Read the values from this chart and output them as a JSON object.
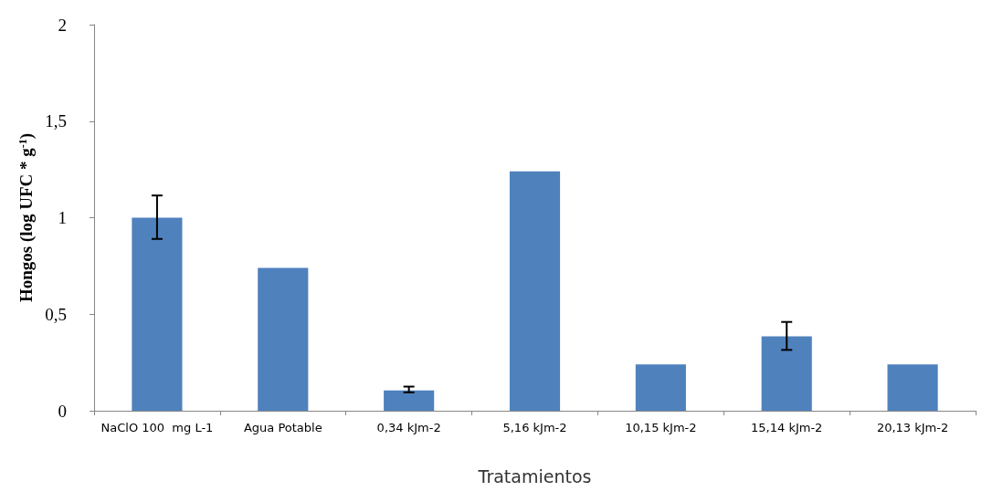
{
  "chart_data": {
    "type": "bar",
    "xlabel": "Tratamientos",
    "ylabel": "Hongos (log UFC * g$^{-1}$)",
    "categories": [
      "NaClO 100  mg L-1",
      "Agua Potable",
      "0,34 kJm-2",
      "5,16 kJm-2",
      "10,15 kJm-2",
      "15,14 kJm-2",
      "20,13 kJm-2"
    ],
    "values": [
      1.0,
      0.74,
      0.105,
      1.24,
      0.24,
      0.385,
      0.24
    ],
    "errors": [
      [
        0.89,
        1.115
      ],
      null,
      [
        0.095,
        0.125
      ],
      null,
      null,
      [
        0.315,
        0.46
      ],
      null
    ],
    "color": "#4f81bd",
    "ylim": [
      0,
      2
    ],
    "yticks": [
      0,
      {
        "value": 0.5,
        "label": "0,5"
      },
      1,
      {
        "value": 1.5,
        "label": "1,5"
      },
      2
    ],
    "grid": false
  }
}
